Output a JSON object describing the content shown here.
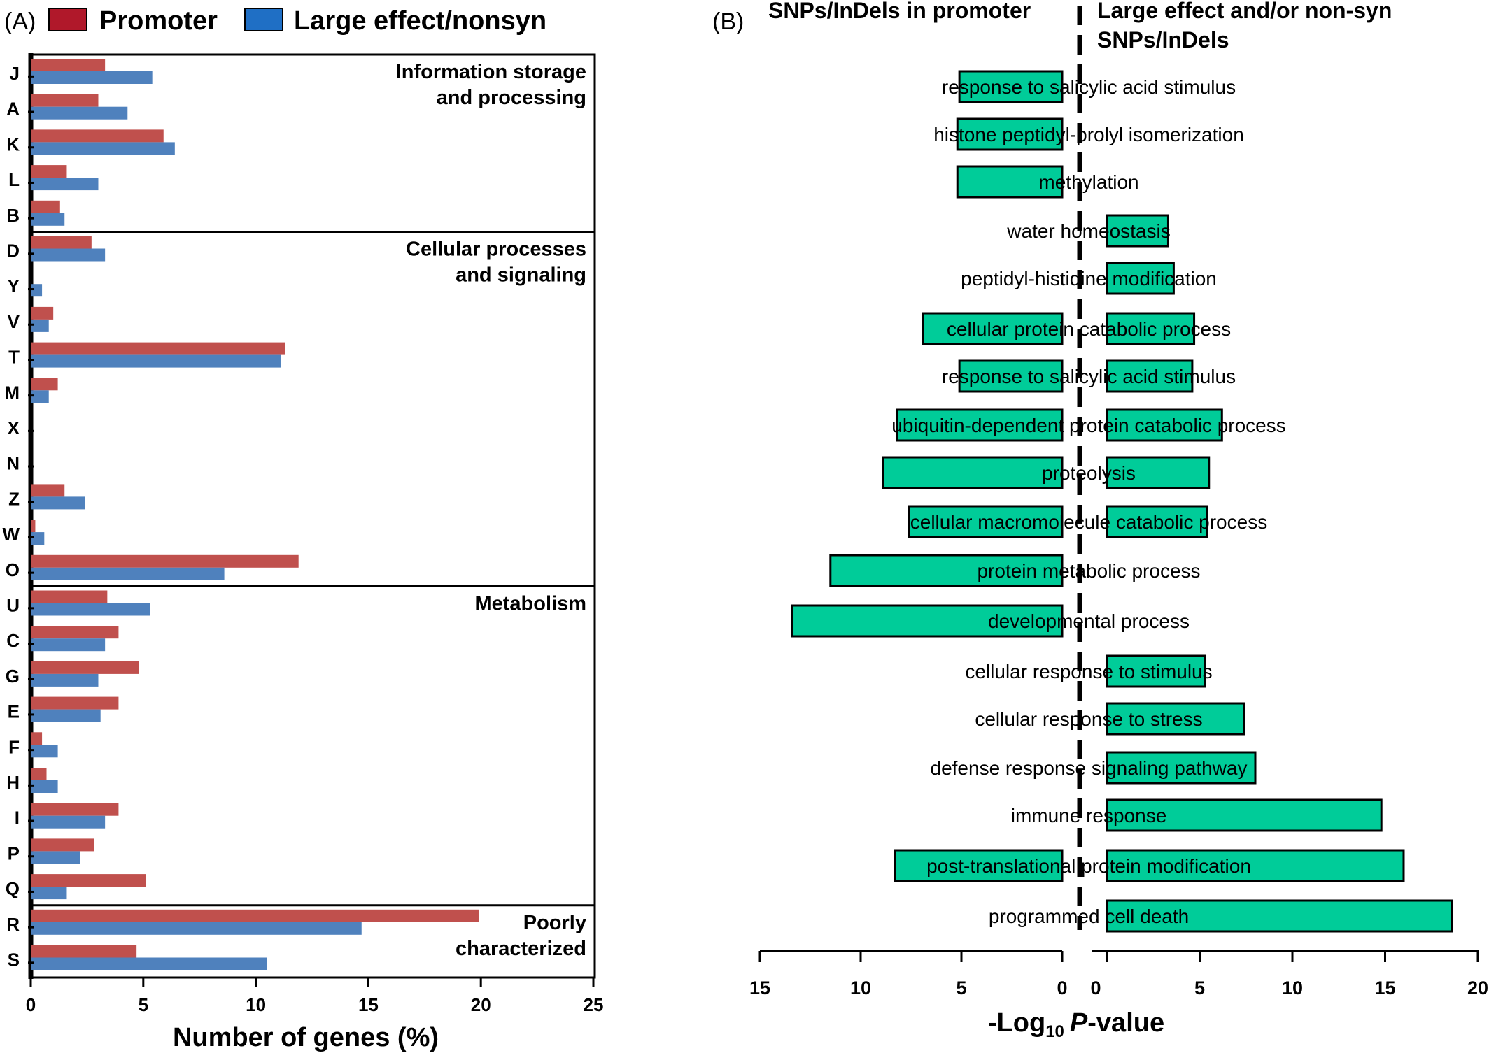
{
  "panel_a": {
    "panel_label": "(A)",
    "legend": [
      {
        "name": "Promoter",
        "color": "#c0504d",
        "swatch": "#b0182a"
      },
      {
        "name": "Large effect/nonsyn",
        "color": "#4f81bd",
        "swatch": "#1f6fc5"
      }
    ],
    "group_labels": [
      {
        "text": "Information storage\nand processing",
        "anchor_category": "J"
      },
      {
        "text": "Cellular processes\nand signaling",
        "anchor_category": "D"
      },
      {
        "text": "Metabolism",
        "anchor_category": "U"
      },
      {
        "text": "Poorly\ncharacterized",
        "anchor_category": "R"
      }
    ],
    "group_dividers_after": [
      "B",
      "O",
      "Q"
    ]
  },
  "panel_b": {
    "panel_label": "(B)",
    "header_left": "SNPs/InDels in promoter",
    "header_right_line1": "Large effect and/or non-syn",
    "header_right_line2": "SNPs/InDels",
    "bar_color": "#00cc99"
  },
  "chart_data": [
    {
      "type": "bar",
      "orientation": "horizontal",
      "categories": [
        "J",
        "A",
        "K",
        "L",
        "B",
        "D",
        "Y",
        "V",
        "T",
        "M",
        "X",
        "N",
        "Z",
        "W",
        "O",
        "U",
        "C",
        "G",
        "E",
        "F",
        "H",
        "I",
        "P",
        "Q",
        "R",
        "S"
      ],
      "series": [
        {
          "name": "Promoter",
          "color": "#c0504d",
          "values": [
            3.3,
            3.0,
            5.9,
            1.6,
            1.3,
            2.7,
            0.0,
            1.0,
            11.3,
            1.2,
            0.0,
            0.0,
            1.5,
            0.2,
            11.9,
            3.4,
            3.9,
            4.8,
            3.9,
            0.5,
            0.7,
            3.9,
            2.8,
            5.1,
            19.9,
            4.7
          ]
        },
        {
          "name": "Large effect/nonsyn",
          "color": "#4f81bd",
          "values": [
            5.4,
            4.3,
            6.4,
            3.0,
            1.5,
            3.3,
            0.5,
            0.8,
            11.1,
            0.8,
            0.0,
            0.0,
            2.4,
            0.6,
            8.6,
            5.3,
            3.3,
            3.0,
            3.1,
            1.2,
            1.2,
            3.3,
            2.2,
            1.6,
            14.7,
            10.5
          ]
        }
      ],
      "xlabel": "Number of genes (%)",
      "ylabel": "",
      "xlim": [
        0,
        25
      ],
      "xticks": [
        0,
        5,
        10,
        15,
        20,
        25
      ]
    },
    {
      "type": "bar",
      "orientation": "horizontal-diverging",
      "categories": [
        "response to salicylic acid stimulus",
        "histone peptidyl-prolyl isomerization",
        "methylation",
        "water homeostasis",
        "peptidyl-histidine modification",
        "cellular protein catabolic process",
        "response to salicylic acid stimulus",
        "ubiquitin-dependent protein catabolic process",
        "proteolysis",
        "cellular macromolecule catabolic process",
        "protein metabolic process",
        "developmental process",
        "cellular response to stimulus",
        "cellular response to stress",
        "defense response signaling pathway",
        "immune response",
        "post-translational protein modification",
        "programmed cell death"
      ],
      "series": [
        {
          "name": "SNPs/InDels in promoter",
          "values": [
            5.1,
            5.2,
            5.2,
            0,
            0,
            6.9,
            5.1,
            8.2,
            8.9,
            7.6,
            11.5,
            13.4,
            0,
            0,
            0,
            0,
            8.3,
            0
          ]
        },
        {
          "name": "Large effect and/or non-syn SNPs/InDels",
          "values": [
            0,
            0,
            0,
            3.3,
            3.6,
            4.7,
            4.6,
            6.2,
            5.5,
            5.4,
            0,
            0,
            5.3,
            7.4,
            8.0,
            14.8,
            16.0,
            18.6
          ]
        }
      ],
      "xlabel": "-Log10 P-value",
      "xlabel_main": "-Log",
      "xlabel_sub": "10",
      "xlabel_italic": "P",
      "xlabel_tail": "-value",
      "xlim_left": [
        15,
        0
      ],
      "xlim_right": [
        0,
        20
      ],
      "xticks_left": [
        15,
        10,
        5,
        0
      ],
      "xticks_right": [
        0,
        5,
        10,
        15,
        20
      ]
    }
  ]
}
